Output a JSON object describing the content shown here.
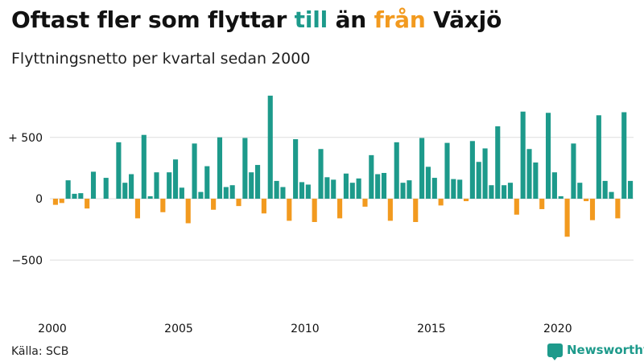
{
  "title": {
    "part1": "Oftast fler som flyttar ",
    "till": "till",
    "part2": " än ",
    "fran": "från",
    "part3": " Växjö"
  },
  "subtitle": "Flyttningsnetto per kvartal sedan 2000",
  "source": "Källa: SCB",
  "brand": {
    "name": "Newsworthy",
    "icon": "chat-bar-chart-icon"
  },
  "colors": {
    "positive": "#1d9a8b",
    "negative": "#f29a1f",
    "grid": "#dddddd",
    "text": "#111111"
  },
  "chart_data": {
    "type": "bar",
    "title": "Oftast fler som flyttar till än från Växjö",
    "subtitle": "Flyttningsnetto per kvartal sedan 2000",
    "x_start_year": 2000,
    "periods_per_year": 4,
    "x_ticks": [
      2000,
      2005,
      2010,
      2015,
      2020
    ],
    "y_ticks": [
      500,
      0,
      -500
    ],
    "y_tick_labels": [
      "+ 500",
      "0",
      "−500"
    ],
    "ylim": [
      -750,
      900
    ],
    "grid": true,
    "values": [
      -50,
      -35,
      150,
      40,
      45,
      -80,
      220,
      0,
      170,
      0,
      460,
      130,
      200,
      -160,
      520,
      20,
      215,
      -110,
      215,
      320,
      90,
      -200,
      450,
      55,
      265,
      -90,
      500,
      95,
      110,
      -60,
      495,
      215,
      275,
      -120,
      840,
      145,
      95,
      -180,
      485,
      135,
      115,
      -190,
      405,
      175,
      155,
      -160,
      205,
      130,
      165,
      -65,
      355,
      200,
      210,
      -180,
      460,
      130,
      150,
      -190,
      495,
      260,
      170,
      -55,
      455,
      160,
      155,
      -20,
      470,
      300,
      410,
      110,
      590,
      110,
      130,
      -130,
      710,
      405,
      295,
      -85,
      700,
      215,
      20,
      -310,
      450,
      130,
      -20,
      -175,
      680,
      145,
      55,
      -160,
      705,
      145
    ]
  }
}
